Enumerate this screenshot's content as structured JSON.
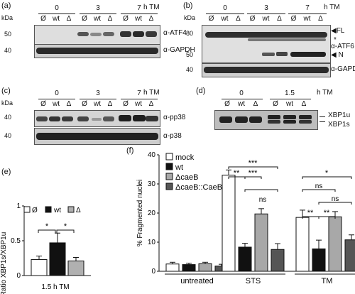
{
  "panels": {
    "a": {
      "label": "(a)",
      "kda": "kDa",
      "timepoints": [
        "0",
        "3",
        "7"
      ],
      "unit": "h TM",
      "lanes": [
        "Ø",
        "wt",
        "Δ",
        "Ø",
        "wt",
        "Δ",
        "Ø",
        "wt",
        "Δ"
      ],
      "mw_top": "50",
      "mw_bottom": "40",
      "antibody_top": "α-ATF4",
      "antibody_bottom": "α-GAPDH"
    },
    "b": {
      "label": "(b)",
      "kda": "kDa",
      "timepoints": [
        "0",
        "3",
        "7"
      ],
      "unit": "h TM",
      "lanes": [
        "Ø",
        "wt",
        "Δ",
        "Ø",
        "wt",
        "Δ",
        "Ø",
        "wt",
        "Δ"
      ],
      "mw_top_1": "80",
      "mw_top_2": "50",
      "mw_bottom": "40",
      "fl": "◀FL",
      "star": "*",
      "antibody_top": "α-ATF6",
      "n": "◀ N",
      "antibody_bottom": "α-GAPDH"
    },
    "c": {
      "label": "(c)",
      "kda": "kDa",
      "timepoints": [
        "0",
        "3",
        "7"
      ],
      "unit": "h TM",
      "lanes": [
        "Ø",
        "wt",
        "Δ",
        "Ø",
        "wt",
        "Δ",
        "Ø",
        "wt",
        "Δ"
      ],
      "mw_top": "40",
      "mw_bottom": "40",
      "antibody_top": "α-pp38",
      "antibody_bottom": "α-p38"
    },
    "d": {
      "label": "(d)",
      "timepoints": [
        "0",
        "1.5"
      ],
      "unit": "h TM",
      "lanes": [
        "Ø",
        "wt",
        "Δ",
        "Ø",
        "wt",
        "Δ"
      ],
      "band_u": "XBP1u",
      "band_s": "XBP1s"
    },
    "e": {
      "label": "(e)",
      "xlabel": "1.5 h TM",
      "ylabel": "Ratio XBP1s/XBP1u",
      "legend": [
        "Ø",
        "wt",
        "Δ"
      ],
      "sig": [
        "*",
        "*"
      ]
    },
    "f": {
      "label": "(f)",
      "ylabel": "% Fragmented nuclei",
      "legend": [
        "mock",
        "wt",
        "ΔcaeB",
        "ΔcaeB::CaeB"
      ],
      "sig": {
        "sts": [
          "***",
          "**",
          "***",
          "ns"
        ],
        "tm": [
          "*",
          "ns",
          "ns",
          "**",
          "**"
        ]
      }
    }
  },
  "chart_data": [
    {
      "type": "bar",
      "title": "",
      "xlabel": "1.5 h TM",
      "ylabel": "Ratio XBP1s/XBP1u",
      "ylim": [
        0,
        1
      ],
      "yticks": [
        0,
        0.5,
        1
      ],
      "categories": [
        "Ø",
        "wt",
        "Δ"
      ],
      "values": [
        0.23,
        0.47,
        0.21
      ],
      "errors": [
        0.05,
        0.14,
        0.05
      ],
      "colors": [
        "#ffffff",
        "#111111",
        "#b0b0b0"
      ],
      "legend_position": "top"
    },
    {
      "type": "bar",
      "title": "",
      "ylabel": "% Fragmented nuclei",
      "ylim": [
        0,
        40
      ],
      "yticks": [
        0,
        10,
        20,
        30,
        40
      ],
      "categories": [
        "untreated",
        "STS",
        "TM"
      ],
      "series": [
        {
          "name": "mock",
          "values": [
            2.5,
            33,
            18.5
          ],
          "errors": [
            0.6,
            1.8,
            2.5
          ],
          "color": "#ffffff"
        },
        {
          "name": "wt",
          "values": [
            2.3,
            8.3,
            7.7
          ],
          "errors": [
            0.5,
            1.3,
            3.0
          ],
          "color": "#111111"
        },
        {
          "name": "ΔcaeB",
          "values": [
            2.6,
            19.7,
            18.7
          ],
          "errors": [
            0.5,
            1.8,
            1.8
          ],
          "color": "#a8a8a8"
        },
        {
          "name": "ΔcaeB::CaeB",
          "values": [
            1.8,
            7.5,
            10.8
          ],
          "errors": [
            0.6,
            2.0,
            1.7
          ],
          "color": "#555555"
        }
      ],
      "legend_position": "top-left"
    }
  ]
}
